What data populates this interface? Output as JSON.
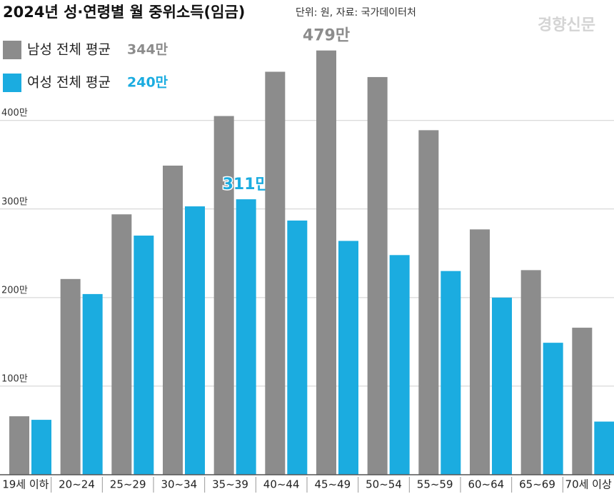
{
  "chart_data": {
    "type": "bar",
    "title": "2024년 성·연령별 월 중위소득(임금)",
    "subtitle": "단위: 원, 자료: 국가데이터처",
    "source": "경향신문",
    "categories": [
      "19세 이하",
      "20~24",
      "25~29",
      "30~34",
      "35~39",
      "40~44",
      "45~49",
      "50~54",
      "55~59",
      "60~64",
      "65~69",
      "70세 이상"
    ],
    "series": [
      {
        "name": "남성 전체 평균",
        "average_label": "344만",
        "color": "#8c8c8c",
        "values": [
          66,
          221,
          294,
          349,
          405,
          455,
          479,
          449,
          389,
          277,
          231,
          166
        ],
        "value_labels": [
          null,
          null,
          null,
          null,
          null,
          null,
          "479만",
          null,
          null,
          null,
          null,
          null
        ]
      },
      {
        "name": "여성 전체 평균",
        "average_label": "240만",
        "color": "#1bace0",
        "values": [
          62,
          204,
          270,
          303,
          311,
          287,
          264,
          248,
          230,
          200,
          149,
          60
        ],
        "value_labels": [
          null,
          null,
          null,
          null,
          "311만",
          null,
          null,
          null,
          null,
          null,
          null,
          null
        ]
      }
    ],
    "ylim": [
      0,
      536
    ],
    "yticks": [
      {
        "value": 100,
        "label": "100만"
      },
      {
        "value": 200,
        "label": "200만"
      },
      {
        "value": 300,
        "label": "300만"
      },
      {
        "value": 400,
        "label": "400만"
      }
    ],
    "grid": true
  }
}
